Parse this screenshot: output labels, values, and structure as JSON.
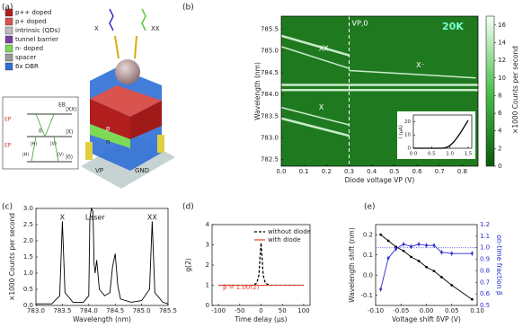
{
  "diagram": {
    "label": "(a)",
    "legend": [
      {
        "label": "p++ doped",
        "color": "#b01e1e"
      },
      {
        "label": "p+ doped",
        "color": "#d9534f"
      },
      {
        "label": "intrinsic (QDs)",
        "color": "#bdbdbd"
      },
      {
        "label": "tunnel barrier",
        "color": "#7b3fa0"
      },
      {
        "label": "n- doped",
        "color": "#7ed957"
      },
      {
        "label": "spacer",
        "color": "#9a9a9a"
      },
      {
        "label": "6x DBR",
        "color": "#2f6fd6"
      }
    ],
    "photons": [
      "X",
      "XX"
    ],
    "contacts": [
      "VP",
      "GND"
    ],
    "layers": [
      "p",
      "n"
    ],
    "levels": [
      "|XX⟩",
      "|X⟩",
      "|0⟩"
    ],
    "energies": [
      "EB",
      "EP",
      "EP"
    ],
    "detuning": "δ",
    "pol": [
      "|H⟩",
      "|V⟩",
      "|H⟩",
      "|V⟩"
    ]
  },
  "chart_data": [
    {
      "type": "heatmap",
      "label": "(b)",
      "xlabel": "Diode voltage VP (V)",
      "ylabel": "Wavelength (nm)",
      "xlim": [
        0,
        0.87
      ],
      "xticks": [
        {
          "value": 0,
          "label": "0.0"
        },
        0.1,
        0.2,
        0.3,
        0.4,
        0.5,
        0.6,
        0.7,
        0.8
      ],
      "ylim": [
        782.35,
        785.8
      ],
      "yticks": [
        782.5,
        {
          "value": 783,
          "label": "783.0"
        },
        783.5,
        {
          "value": 784,
          "label": "784.0"
        },
        784.5,
        {
          "value": 785,
          "label": "785.0"
        },
        785.5
      ],
      "traces": [
        {
          "name": "XX",
          "x": [
            0,
            0.3
          ],
          "y": [
            785.1,
            784.6
          ]
        },
        {
          "name": "X",
          "x": [
            0,
            0.3
          ],
          "y": [
            783.7,
            783.3
          ]
        },
        {
          "x": [
            0,
            0.3
          ],
          "y": [
            783.45,
            783.05
          ]
        },
        {
          "x": [
            0,
            0.3
          ],
          "y": [
            785.35,
            784.9
          ]
        },
        {
          "name": "X⁻",
          "x": [
            0.3,
            0.86
          ],
          "y": [
            784.55,
            784.38
          ]
        },
        {
          "x": [
            0,
            0.87
          ],
          "y": [
            784.22,
            784.22
          ]
        },
        {
          "x": [
            0,
            0.87
          ],
          "y": [
            784.1,
            784.1
          ]
        }
      ],
      "vline": {
        "value": 0.3,
        "label": "VP,0"
      },
      "temperature": "20K",
      "colorbar": {
        "label": "×1000 Counts per second",
        "lim": [
          0,
          17
        ],
        "ticks": [
          0,
          2,
          4,
          6,
          8,
          10,
          12,
          14,
          16
        ]
      },
      "inset": {
        "type": "line",
        "ylabel": "I (µA)",
        "x": [
          0,
          0.8,
          0.9,
          1.0,
          1.1,
          1.2,
          1.3,
          1.4,
          1.5
        ],
        "values": [
          0,
          0,
          0.5,
          2,
          4.5,
          8,
          12,
          16.5,
          21
        ],
        "xlim": [
          0,
          1.6
        ],
        "ylim": [
          0,
          25
        ],
        "xticks": [
          {
            "value": 0,
            "label": "0.0"
          },
          0.5,
          {
            "value": 1,
            "label": "1.0"
          },
          1.5
        ],
        "yticks": [
          0,
          10,
          20
        ],
        "color": "#000"
      }
    },
    {
      "type": "line",
      "label": "(c)",
      "xlabel": "Wavelength (nm)",
      "ylabel": "×1000 Counts per second",
      "x": [
        783.0,
        783.3,
        783.45,
        783.5,
        783.55,
        783.7,
        783.9,
        784.0,
        784.02,
        784.05,
        784.08,
        784.1,
        784.12,
        784.15,
        784.2,
        784.3,
        784.4,
        784.45,
        784.5,
        784.55,
        784.6,
        784.8,
        785.0,
        785.15,
        785.2,
        785.25,
        785.4,
        785.5
      ],
      "series": [
        {
          "color": "#000",
          "values": [
            0.05,
            0.05,
            0.3,
            2.6,
            0.4,
            0.1,
            0.1,
            0.3,
            2.7,
            3.0,
            2.9,
            1.3,
            1.0,
            1.4,
            0.5,
            0.3,
            0.4,
            1.2,
            1.6,
            0.6,
            0.2,
            0.1,
            0.15,
            0.5,
            2.6,
            0.4,
            0.1,
            0.05
          ]
        }
      ],
      "annotations": [
        "X",
        "Laser",
        "XX"
      ],
      "xlim": [
        783,
        785.5
      ],
      "xticks": [
        {
          "value": 783,
          "label": "783.0"
        },
        783.5,
        {
          "value": 784,
          "label": "784.0"
        },
        784.5,
        {
          "value": 785,
          "label": "785.0"
        },
        785.5
      ],
      "ylim": [
        0,
        3
      ],
      "yticks": [
        {
          "value": 0,
          "label": "0.0"
        },
        0.5,
        {
          "value": 1,
          "label": "1.0"
        },
        1.5,
        {
          "value": 2,
          "label": "2.0"
        },
        2.5,
        {
          "value": 3,
          "label": "3.0"
        }
      ]
    },
    {
      "type": "line",
      "label": "(d)",
      "xlabel": "Time delay (µs)",
      "ylabel": "g(2)",
      "legend": "upper right",
      "x": [
        -100,
        -20,
        -10,
        -5,
        -2,
        0,
        2,
        5,
        10,
        20,
        100
      ],
      "series": [
        {
          "name": "without diode",
          "color": "#000",
          "dash": true,
          "values": [
            1,
            1,
            1.1,
            1.5,
            2.5,
            3.1,
            2.5,
            1.5,
            1.1,
            1,
            1
          ]
        },
        {
          "name": "with diode",
          "color": "#e8402a",
          "values": [
            1,
            1,
            1,
            1,
            1,
            1,
            1,
            1,
            1,
            1,
            1
          ]
        }
      ],
      "annotations": [
        "β = 1.00(2)"
      ],
      "xlim": [
        -115,
        115
      ],
      "xticks": [
        -100,
        -50,
        0,
        50,
        100
      ],
      "ylim": [
        0,
        4
      ],
      "yticks": [
        0,
        1,
        2,
        3,
        4
      ]
    },
    {
      "type": "line",
      "label": "(e)",
      "xlabel": "Voltage shift δVP (V)",
      "ylabel": "Wavelength shift (nm)",
      "y2label": "on-time fraction β",
      "x": [
        -0.09,
        -0.075,
        -0.06,
        -0.045,
        -0.03,
        -0.015,
        0,
        0.015,
        0.03,
        0.05,
        0.09
      ],
      "series": [
        {
          "color": "#000",
          "values": [
            0.2,
            0.17,
            0.14,
            0.12,
            0.09,
            0.07,
            0.04,
            0.02,
            -0.01,
            -0.05,
            -0.12
          ]
        },
        {
          "color": "#2b2bd6",
          "axis": "y2",
          "values": [
            0.64,
            0.91,
            0.99,
            1.03,
            1.01,
            1.03,
            1.02,
            1.02,
            0.96,
            0.95,
            0.95
          ],
          "errors": [
            0.02,
            0.02,
            0.02,
            0.02,
            0.02,
            0.02,
            0.02,
            0.02,
            0.02,
            0.02,
            0.02
          ]
        }
      ],
      "hline": 1,
      "xlim": [
        -0.1,
        0.1
      ],
      "xticks": [
        {
          "value": -0.1,
          "label": "-0.10"
        },
        -0.05,
        {
          "value": 0,
          "label": "0.00"
        },
        0.05,
        {
          "value": 0.1,
          "label": "0.10"
        }
      ],
      "ylim": [
        -0.15,
        0.25
      ],
      "yticks": [
        -0.1,
        {
          "value": 0,
          "label": "0.0"
        },
        0.1,
        0.2
      ],
      "y2lim": [
        0.5,
        1.2
      ],
      "y2ticks": [
        0.5,
        0.6,
        0.7,
        0.8,
        0.9,
        {
          "value": 1,
          "label": "1.0"
        },
        1.1,
        1.2
      ]
    }
  ]
}
